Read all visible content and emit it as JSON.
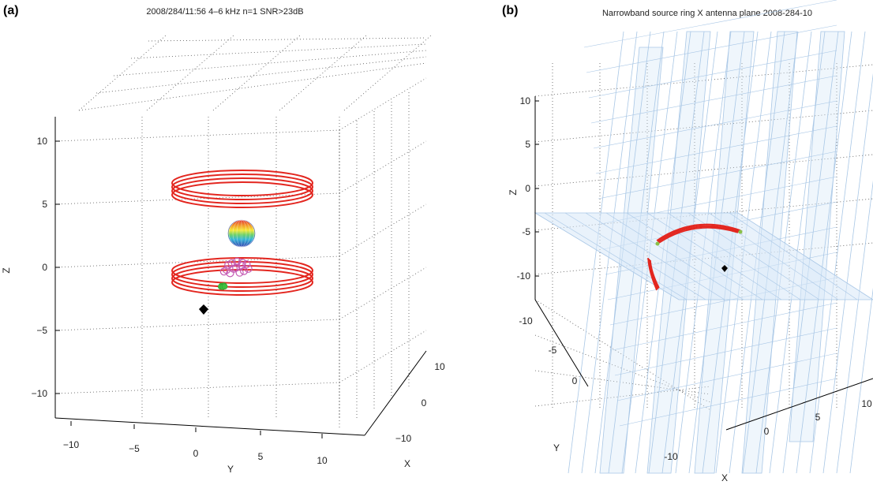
{
  "chart_data": [
    {
      "panel_label": "(a)",
      "type": "scatter",
      "title": "2008/284/11:56  4–6 kHz n=1 SNR>23dB",
      "xlabel": "X",
      "ylabel": "Y",
      "zlabel": "Z",
      "x_ticks": [
        "10",
        "0",
        "−10"
      ],
      "y_ticks": [
        "−10",
        "−5",
        "0",
        "5",
        "10"
      ],
      "z_ticks": [
        "10",
        "5",
        "0",
        "−5",
        "−10"
      ],
      "zlim": [
        -12,
        12
      ],
      "grid": true,
      "series": [
        {
          "kind": "ring",
          "color": "#e3261f",
          "z": 6,
          "radius": 6
        },
        {
          "kind": "ring",
          "color": "#e3261f",
          "z": -0.5,
          "radius": 6
        },
        {
          "kind": "sphere",
          "z": 2.6,
          "radius": 1.2
        },
        {
          "kind": "scatter",
          "color": "#c45ab3",
          "marker": "open-circle",
          "points": [
            [
              0.8,
              0.2
            ],
            [
              -0.9,
              -0.6
            ],
            [
              1.4,
              0.4
            ],
            [
              -0.3,
              0.6
            ],
            [
              0.2,
              -0.2
            ],
            [
              -0.7,
              0.3
            ],
            [
              1.6,
              -0.4
            ],
            [
              -1.2,
              -0.9
            ],
            [
              0.6,
              -1.1
            ],
            [
              -0.1,
              -0.4
            ],
            [
              0.9,
              0.7
            ],
            [
              -0.5,
              -1.2
            ],
            [
              1.1,
              -0.8
            ],
            [
              0.3,
              0.9
            ]
          ]
        },
        {
          "kind": "scatter",
          "color": "#3fbf3f",
          "marker": "filled-circle",
          "points": [
            [
              -0.8,
              -1.6
            ],
            [
              -0.4,
              -1.5
            ],
            [
              -0.9,
              -1.9
            ],
            [
              -0.6,
              -2.0
            ],
            [
              -0.3,
              -1.8
            ]
          ]
        },
        {
          "kind": "point",
          "color": "#000000",
          "marker": "diamond",
          "y": -3.4,
          "z": -3.3
        }
      ]
    },
    {
      "panel_label": "(b)",
      "type": "scatter",
      "title": "Narrowband source ring X antenna plane 2008-284-10",
      "xlabel": "X",
      "ylabel": "Y",
      "zlabel": "Z",
      "z_ticks": [
        "10",
        "5",
        "0",
        "-5",
        "-10"
      ],
      "y_ticks": [
        "-10",
        "-5",
        "0"
      ],
      "x_ticks": [
        "-10",
        "0",
        "5",
        "10"
      ],
      "grid": true,
      "series": [
        {
          "kind": "antenna-plane",
          "color": "#a9c7e6"
        },
        {
          "kind": "ring-arc",
          "color": "#e3261f"
        },
        {
          "kind": "point",
          "color": "#000000",
          "marker": "diamond"
        }
      ]
    }
  ]
}
